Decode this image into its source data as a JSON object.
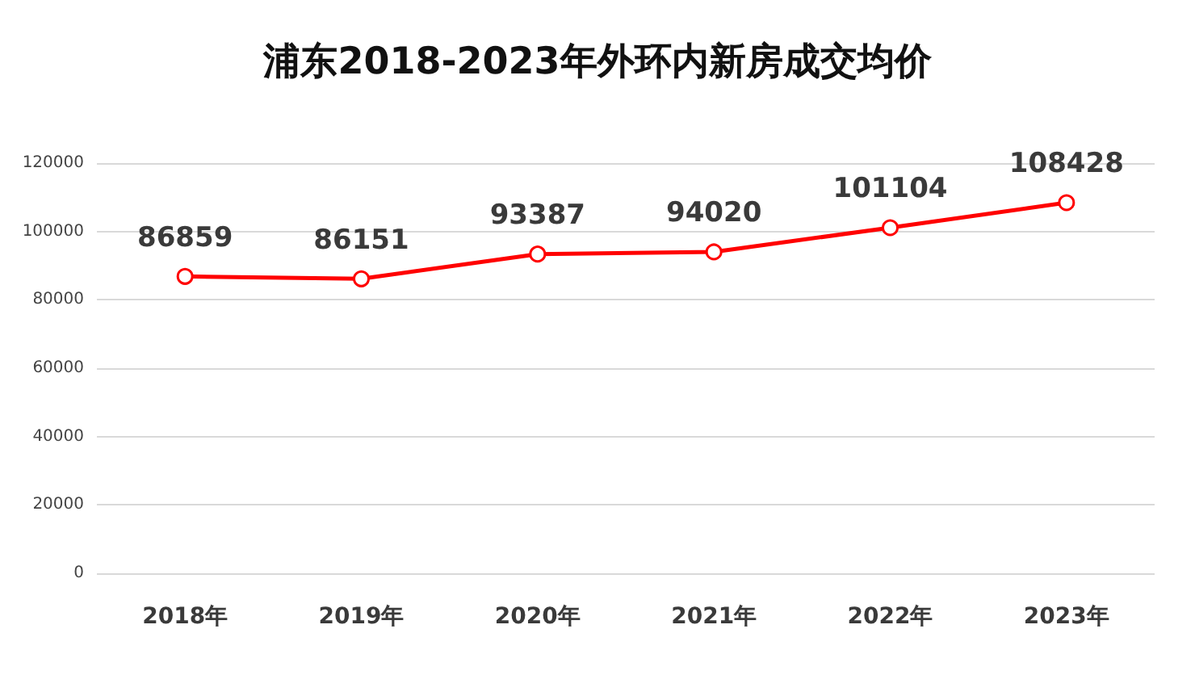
{
  "chart_data": {
    "type": "line",
    "title": "浦东2018-2023年外环内新房成交均价",
    "categories": [
      "2018年",
      "2019年",
      "2020年",
      "2021年",
      "2022年",
      "2023年"
    ],
    "series": [
      {
        "color": "#ff0000",
        "values": [
          86859,
          86151,
          93387,
          94020,
          101104,
          108428
        ]
      }
    ],
    "ylim": [
      0,
      120000
    ],
    "yticks": [
      0,
      20000,
      40000,
      60000,
      80000,
      100000,
      120000
    ],
    "grid": "y",
    "marker": "circle",
    "line_style": "solid",
    "data_labels": true
  }
}
